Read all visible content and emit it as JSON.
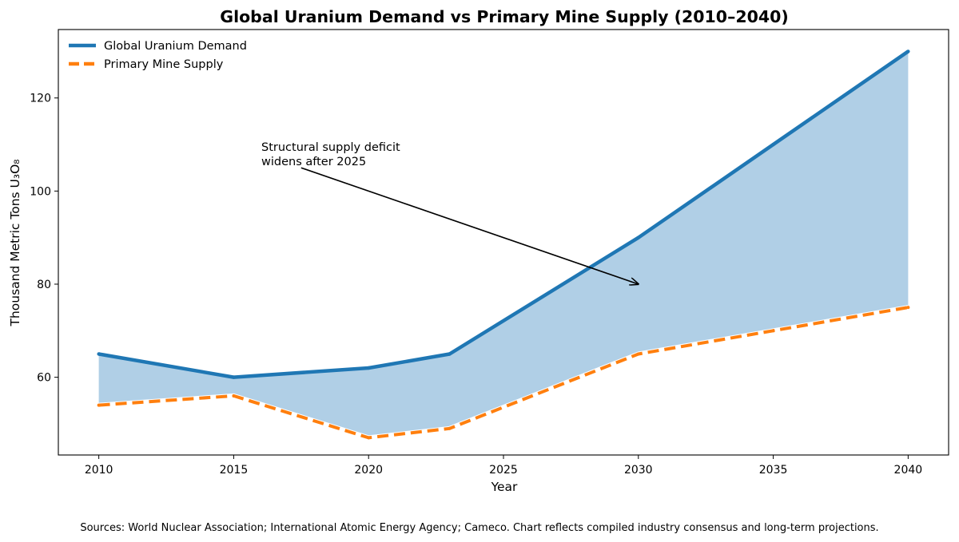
{
  "chart_data": {
    "type": "line",
    "title": "Global Uranium Demand vs Primary Mine Supply (2010–2040)",
    "xlabel": "Year",
    "ylabel": "Thousand Metric Tons U₃O₈",
    "x": [
      2010,
      2015,
      2020,
      2023,
      2030,
      2035,
      2040
    ],
    "xlim": [
      2008.5,
      2041.5
    ],
    "ylim": [
      43.3,
      134.7
    ],
    "xticks": [
      2010,
      2015,
      2020,
      2025,
      2030,
      2035,
      2040
    ],
    "yticks": [
      60,
      80,
      100,
      120
    ],
    "grid": false,
    "legend_position": "top-left",
    "series": [
      {
        "name": "Global Uranium Demand",
        "values": [
          65,
          60,
          62,
          65,
          90,
          110,
          130
        ],
        "color": "#1f77b4",
        "style": "solid"
      },
      {
        "name": "Primary Mine Supply",
        "values": [
          54,
          56,
          47,
          49,
          65,
          70,
          75
        ],
        "color": "#ff7f0e",
        "style": "dashed"
      }
    ],
    "fill_between": {
      "from_series": 1,
      "to_series": 0,
      "color": "#b0cfe6"
    },
    "annotation": {
      "lines": [
        "Structural supply deficit",
        "widens after 2025"
      ],
      "text_at": [
        2016,
        106.5
      ],
      "arrow_to": [
        2030,
        80
      ]
    }
  },
  "footer": {
    "source": "Sources: World Nuclear Association; International Atomic Energy Agency; Cameco. Chart reflects compiled industry consensus and long-term projections."
  }
}
